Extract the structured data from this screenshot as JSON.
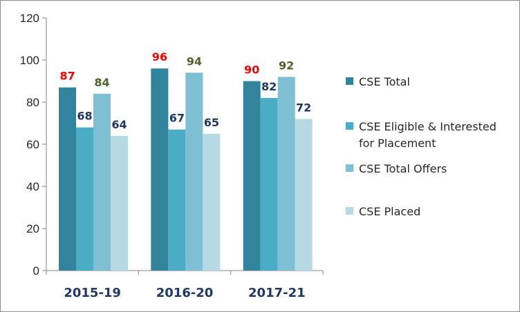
{
  "chart_data": {
    "type": "bar",
    "title": "",
    "xlabel": "",
    "ylabel": "",
    "categories": [
      "2015-19",
      "2016-20",
      "2017-21"
    ],
    "ylim": [
      0,
      120
    ],
    "yticks": [
      "0",
      "20",
      "40",
      "60",
      "80",
      "100",
      "120"
    ],
    "grid": false,
    "legend_position": "right",
    "series": [
      {
        "name": "CSE Total",
        "values": [
          87,
          96,
          90
        ],
        "color": "#31849b",
        "label_color": "#ff0000"
      },
      {
        "name": "CSE Eligible & Interested for Placement",
        "values": [
          68,
          67,
          82
        ],
        "color": "#4bacc6",
        "label_color": "#1f3864"
      },
      {
        "name": "CSE Total Offers",
        "values": [
          84,
          94,
          92
        ],
        "color": "#7fbfd4",
        "label_color": "#4f6228"
      },
      {
        "name": "CSE Placed",
        "values": [
          64,
          65,
          72
        ],
        "color": "#b7d9e3",
        "label_color": "#1f3864"
      }
    ],
    "legend_lines": [
      [
        "CSE Total"
      ],
      [
        "CSE Eligible & Interested",
        "for Placement"
      ],
      [
        "CSE Total Offers"
      ],
      [
        "CSE Placed"
      ]
    ]
  }
}
